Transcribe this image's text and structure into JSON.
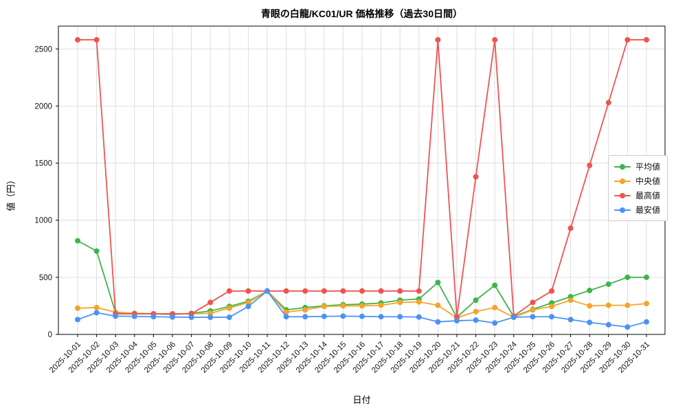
{
  "chart_data": {
    "type": "line",
    "title": "青眼の白龍/KC01/UR 価格推移（過去30日間）",
    "xlabel": "日付",
    "ylabel": "値（円）",
    "grid": true,
    "legend_position": "center right",
    "ylim": [
      0,
      2700
    ],
    "yticks": [
      0,
      500,
      1000,
      1500,
      2000,
      2500
    ],
    "x": [
      "2025-10-01",
      "2025-10-02",
      "2025-10-03",
      "2025-10-04",
      "2025-10-05",
      "2025-10-06",
      "2025-10-07",
      "2025-10-08",
      "2025-10-09",
      "2025-10-10",
      "2025-10-11",
      "2025-10-12",
      "2025-10-13",
      "2025-10-14",
      "2025-10-15",
      "2025-10-16",
      "2025-10-17",
      "2025-10-18",
      "2025-10-19",
      "2025-10-20",
      "2025-10-21",
      "2025-10-22",
      "2025-10-23",
      "2025-10-24",
      "2025-10-25",
      "2025-10-26",
      "2025-10-27",
      "2025-10-28",
      "2025-10-29",
      "2025-10-30",
      "2025-10-31"
    ],
    "series": [
      {
        "id": "average",
        "name": "平均値",
        "color": "#3cb54a",
        "values": [
          820,
          730,
          190,
          185,
          180,
          175,
          185,
          205,
          245,
          290,
          380,
          215,
          235,
          250,
          260,
          265,
          275,
          300,
          310,
          455,
          150,
          300,
          430,
          155,
          220,
          275,
          330,
          385,
          440,
          500,
          500
        ]
      },
      {
        "id": "median",
        "name": "中央値",
        "color": "#f5a42a",
        "values": [
          230,
          235,
          195,
          185,
          180,
          180,
          180,
          185,
          230,
          280,
          380,
          195,
          215,
          245,
          250,
          250,
          255,
          280,
          285,
          255,
          145,
          200,
          235,
          150,
          215,
          245,
          300,
          250,
          255,
          255,
          270
        ]
      },
      {
        "id": "max",
        "name": "最高値",
        "color": "#ef5350",
        "values": [
          2580,
          2580,
          180,
          180,
          180,
          180,
          180,
          280,
          380,
          380,
          380,
          380,
          380,
          380,
          380,
          380,
          380,
          380,
          380,
          2580,
          155,
          1380,
          2580,
          160,
          280,
          380,
          930,
          1480,
          2030,
          2580,
          2580
        ]
      },
      {
        "id": "min",
        "name": "最安値",
        "color": "#4b92f5",
        "values": [
          130,
          190,
          160,
          158,
          155,
          152,
          150,
          150,
          150,
          245,
          380,
          155,
          155,
          158,
          160,
          158,
          155,
          155,
          152,
          110,
          120,
          125,
          100,
          150,
          155,
          155,
          130,
          105,
          85,
          65,
          110
        ]
      }
    ]
  }
}
